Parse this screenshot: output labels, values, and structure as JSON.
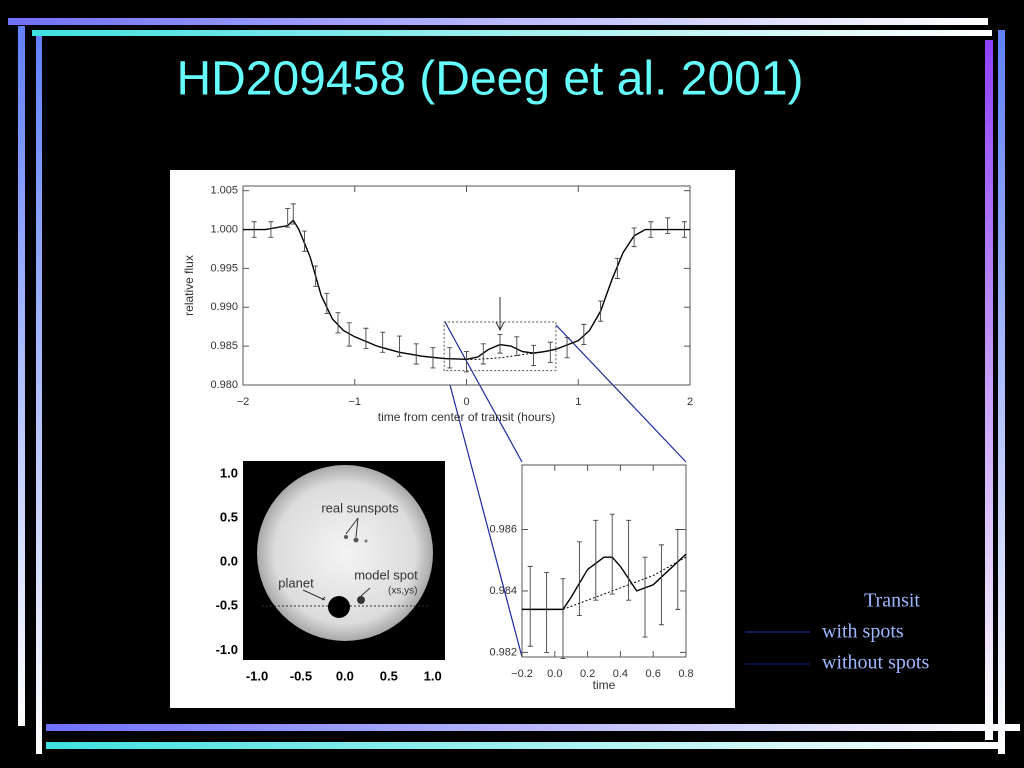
{
  "title": "HD209458 (Deeg et al. 2001)",
  "chart_data": [
    {
      "type": "line",
      "xlabel": "time from center of transit (hours)",
      "ylabel": "relative flux",
      "legend_title": "Transit",
      "xlim": [
        -2,
        2
      ],
      "ylim": [
        0.98,
        1.0056
      ],
      "xticks": [
        {
          "value": -2,
          "label": "−2"
        },
        {
          "value": -1,
          "label": "−1"
        },
        0,
        1,
        2
      ],
      "yticks": [
        {
          "value": 0.98,
          "label": "0.980"
        },
        0.985,
        {
          "value": 0.99,
          "label": "0.990"
        },
        0.995,
        {
          "value": 1.0,
          "label": "1.000"
        },
        1.005
      ],
      "x": [
        -2,
        -1.8,
        -1.6,
        -1.55,
        -1.5,
        -1.4,
        -1.3,
        -1.2,
        -1.1,
        -1,
        -0.8,
        -0.6,
        -0.4,
        -0.2,
        0,
        0.1,
        0.2,
        0.3,
        0.4,
        0.5,
        0.6,
        0.7,
        0.8,
        1,
        1.1,
        1.2,
        1.3,
        1.4,
        1.5,
        1.6,
        1.8,
        2
      ],
      "series": [
        {
          "name": "with spots",
          "color": "#000000",
          "dash": false,
          "values": [
            1.0,
            1.0,
            1.0005,
            1.0012,
            1.0,
            0.9965,
            0.9915,
            0.9885,
            0.987,
            0.9862,
            0.985,
            0.9842,
            0.9837,
            0.9834,
            0.9833,
            0.9836,
            0.9846,
            0.9852,
            0.985,
            0.9843,
            0.9841,
            0.9843,
            0.9846,
            0.9857,
            0.987,
            0.9895,
            0.9935,
            0.997,
            0.9992,
            1.0,
            1.0,
            1.0
          ]
        },
        {
          "name": "without spots",
          "color": "#000000",
          "dash": true,
          "values": [
            null,
            null,
            null,
            null,
            null,
            null,
            null,
            null,
            null,
            null,
            null,
            null,
            null,
            null,
            0.9833,
            0.9833,
            0.9834,
            0.9835,
            0.9837,
            0.9839,
            0.9841,
            0.9843,
            0.9846,
            null,
            null,
            null,
            null,
            null,
            null,
            null,
            null,
            null
          ]
        }
      ],
      "points": {
        "x": [
          -1.9,
          -1.75,
          -1.6,
          -1.55,
          -1.45,
          -1.35,
          -1.25,
          -1.15,
          -1.05,
          -0.9,
          -0.75,
          -0.6,
          -0.45,
          -0.3,
          -0.15,
          0,
          0.15,
          0.3,
          0.45,
          0.6,
          0.75,
          0.9,
          1.05,
          1.2,
          1.35,
          1.5,
          1.65,
          1.8,
          1.95
        ],
        "values": [
          1.0,
          1.0,
          1.0015,
          1.002,
          0.9985,
          0.994,
          0.9905,
          0.988,
          0.9865,
          0.986,
          0.9855,
          0.985,
          0.984,
          0.9835,
          0.9835,
          0.983,
          0.984,
          0.9853,
          0.985,
          0.9838,
          0.9842,
          0.9848,
          0.9865,
          0.9895,
          0.995,
          0.999,
          1.0,
          1.0005,
          1.0
        ],
        "errors": [
          0.001,
          0.001,
          0.0012,
          0.0013,
          0.0013,
          0.0013,
          0.0013,
          0.0013,
          0.0015,
          0.0013,
          0.0013,
          0.0013,
          0.0013,
          0.0013,
          0.0013,
          0.0013,
          0.0013,
          0.0012,
          0.0012,
          0.0013,
          0.0013,
          0.0013,
          0.0013,
          0.0013,
          0.0013,
          0.0012,
          0.001,
          0.001,
          0.001
        ]
      }
    },
    {
      "type": "line",
      "xlabel": "time",
      "xlim": [
        -0.2,
        0.8
      ],
      "ylim": [
        0.98185,
        0.9881
      ],
      "xticks": [
        {
          "value": -0.2,
          "label": "−0.2"
        },
        {
          "value": 0,
          "label": "0.0"
        },
        0.2,
        0.4,
        0.6,
        0.8
      ],
      "yticks": [
        0.982,
        0.984,
        0.986
      ],
      "x": [
        -0.2,
        -0.1,
        0,
        0.05,
        0.1,
        0.2,
        0.3,
        0.35,
        0.4,
        0.5,
        0.6,
        0.7,
        0.8
      ],
      "series": [
        {
          "name": "with spots",
          "color": "#000000",
          "dash": false,
          "values": [
            0.9834,
            0.9834,
            0.9834,
            0.9834,
            0.9838,
            0.9847,
            0.9851,
            0.9851,
            0.9848,
            0.984,
            0.9842,
            0.9847,
            0.9852
          ]
        },
        {
          "name": "without spots",
          "color": "#000000",
          "dash": true,
          "values": [
            null,
            null,
            null,
            0.9834,
            0.9835,
            0.9837,
            0.9839,
            0.984,
            0.9841,
            0.9843,
            0.9845,
            0.9848,
            0.9851
          ]
        }
      ],
      "points": {
        "x": [
          -0.15,
          -0.05,
          0.05,
          0.15,
          0.25,
          0.35,
          0.45,
          0.55,
          0.65,
          0.75
        ],
        "values": [
          0.9835,
          0.9833,
          0.9831,
          0.9844,
          0.985,
          0.9852,
          0.985,
          0.9838,
          0.9842,
          0.9847
        ],
        "errors": [
          0.0013,
          0.0013,
          0.0013,
          0.0012,
          0.0013,
          0.0013,
          0.0013,
          0.0013,
          0.0013,
          0.0013
        ]
      }
    },
    {
      "type": "image",
      "xlim": [
        -1.16,
        1.14
      ],
      "ylim": [
        -1.11,
        1.15
      ],
      "xticks": [
        {
          "value": -1,
          "label": "-1.0"
        },
        {
          "value": -0.5,
          "label": "-0.5"
        },
        {
          "value": 0,
          "label": "0.0"
        },
        0.5,
        {
          "value": 1,
          "label": "1.0"
        }
      ],
      "yticks": [
        {
          "value": -1,
          "label": "-1.0"
        },
        {
          "value": -0.5,
          "label": "-0.5"
        },
        {
          "value": 0,
          "label": "0.0"
        },
        0.5,
        {
          "value": 1,
          "label": "1.0"
        }
      ],
      "annotations": [
        "real sunspots",
        "planet",
        "model spot",
        "(xs,ys)"
      ]
    }
  ]
}
